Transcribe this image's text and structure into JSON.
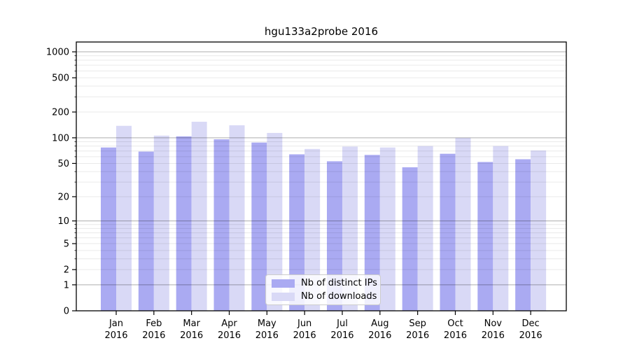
{
  "chart_data": {
    "type": "bar",
    "title": "hgu133a2probe 2016",
    "scale": "log1p",
    "categories": [
      "Jan",
      "Feb",
      "Mar",
      "Apr",
      "May",
      "Jun",
      "Jul",
      "Aug",
      "Sep",
      "Oct",
      "Nov",
      "Dec"
    ],
    "category_year": "2016",
    "series": [
      {
        "name": "Nb of distinct IPs",
        "color": "#aaaaf2",
        "values": [
          77,
          69,
          104,
          96,
          88,
          64,
          53,
          63,
          45,
          65,
          52,
          56
        ]
      },
      {
        "name": "Nb of downloads",
        "color": "#d9d9f6",
        "values": [
          138,
          106,
          154,
          140,
          114,
          74,
          79,
          77,
          80,
          100,
          80,
          71
        ]
      }
    ],
    "y_ticks": [
      0,
      1,
      2,
      5,
      10,
      20,
      50,
      100,
      200,
      500,
      1000
    ],
    "ylim": [
      0,
      1000
    ],
    "grid": {
      "major_values": [
        1,
        10,
        100,
        1000
      ],
      "major_color": "#b0b0b0",
      "minor_color": "#e8e8e8"
    },
    "legend": {
      "position": "lower-center"
    },
    "axis_color": "#000000",
    "tick_label_color": "#000000"
  }
}
